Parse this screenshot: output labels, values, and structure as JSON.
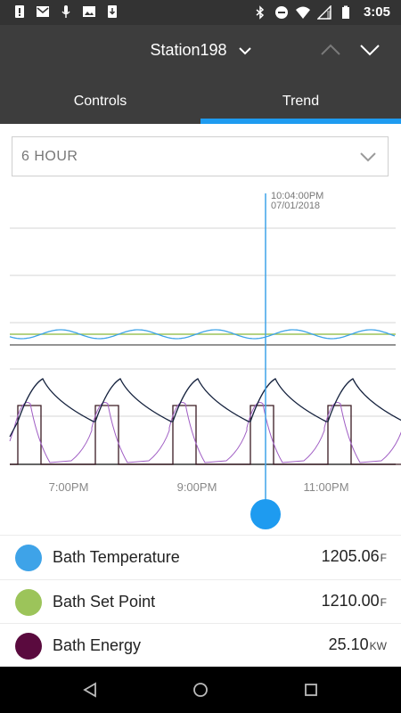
{
  "status_bar": {
    "time": "3:05",
    "left_icons": [
      "alert-icon",
      "gmail-icon",
      "microphone-icon",
      "image-icon",
      "download-icon"
    ],
    "right_icons": [
      "bluetooth-icon",
      "do-not-disturb-icon",
      "wifi-icon",
      "signal-icon",
      "battery-icon"
    ]
  },
  "header": {
    "station_name": "Station198",
    "tabs": [
      {
        "label": "Controls",
        "active": false
      },
      {
        "label": "Trend",
        "active": true
      }
    ]
  },
  "range_select": {
    "value": "6 HOUR"
  },
  "chart_data": {
    "type": "line",
    "cursor": {
      "time": "10:04:00PM",
      "date": "07/01/2018"
    },
    "x_ticks": [
      "7:00PM",
      "9:00PM",
      "11:00PM"
    ],
    "series": [
      {
        "name": "Bath Temperature",
        "color": "#3ea3e8"
      },
      {
        "name": "Bath Set Point",
        "color": "#9cc45a"
      },
      {
        "name": "Bath Energy",
        "color": "#5a0a3e"
      }
    ],
    "grid": true
  },
  "legend": [
    {
      "label": "Bath Temperature",
      "value": "1205.06",
      "unit": "F",
      "color": "#3ea3e8"
    },
    {
      "label": "Bath Set Point",
      "value": "1210.00",
      "unit": "F",
      "color": "#9cc45a"
    },
    {
      "label": "Bath Energy",
      "value": "25.10",
      "unit": "KW",
      "color": "#5a0a3e"
    }
  ],
  "nav_bar": {
    "icons": [
      "back-icon",
      "home-icon",
      "recents-icon"
    ]
  }
}
